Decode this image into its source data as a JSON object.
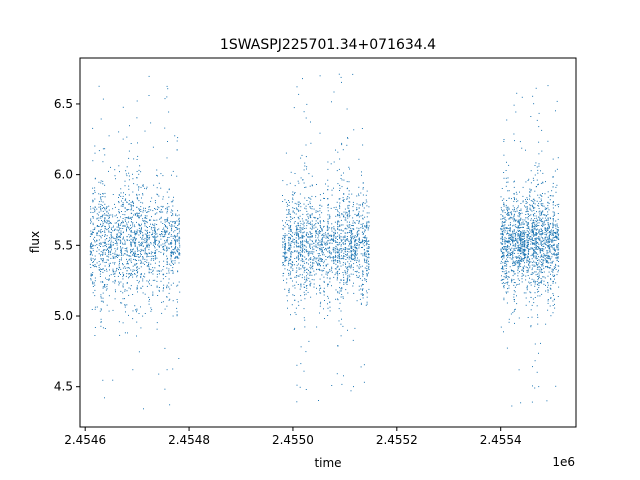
{
  "chart_data": {
    "type": "scatter",
    "title": "1SWASPJ225701.34+071634.4",
    "xlabel": "time",
    "ylabel": "flux",
    "x_offset_label": "1e6",
    "xlim": [
      2.45459,
      2.455545
    ],
    "ylim": [
      4.215,
      6.825
    ],
    "x_ticks": [
      2.4546,
      2.4548,
      2.455,
      2.4552,
      2.4554
    ],
    "x_tick_labels": [
      "2.4546",
      "2.4548",
      "2.4550",
      "2.4552",
      "2.4554"
    ],
    "y_ticks": [
      4.5,
      5.0,
      5.5,
      6.0,
      6.5
    ],
    "y_tick_labels": [
      "4.5",
      "5.0",
      "5.5",
      "6.0",
      "6.5"
    ],
    "grid": false,
    "marker_color": "#1f77b4",
    "observing_seasons": [
      {
        "x_range": [
          2.45461,
          2.45478
        ],
        "y_median": 5.52,
        "y_range": [
          4.34,
          6.7
        ]
      },
      {
        "x_range": [
          2.45498,
          2.455145
        ],
        "y_median": 5.5,
        "y_range": [
          4.34,
          6.72
        ]
      },
      {
        "x_range": [
          2.4554,
          2.45551
        ],
        "y_median": 5.52,
        "y_range": [
          4.34,
          6.65
        ]
      }
    ]
  }
}
